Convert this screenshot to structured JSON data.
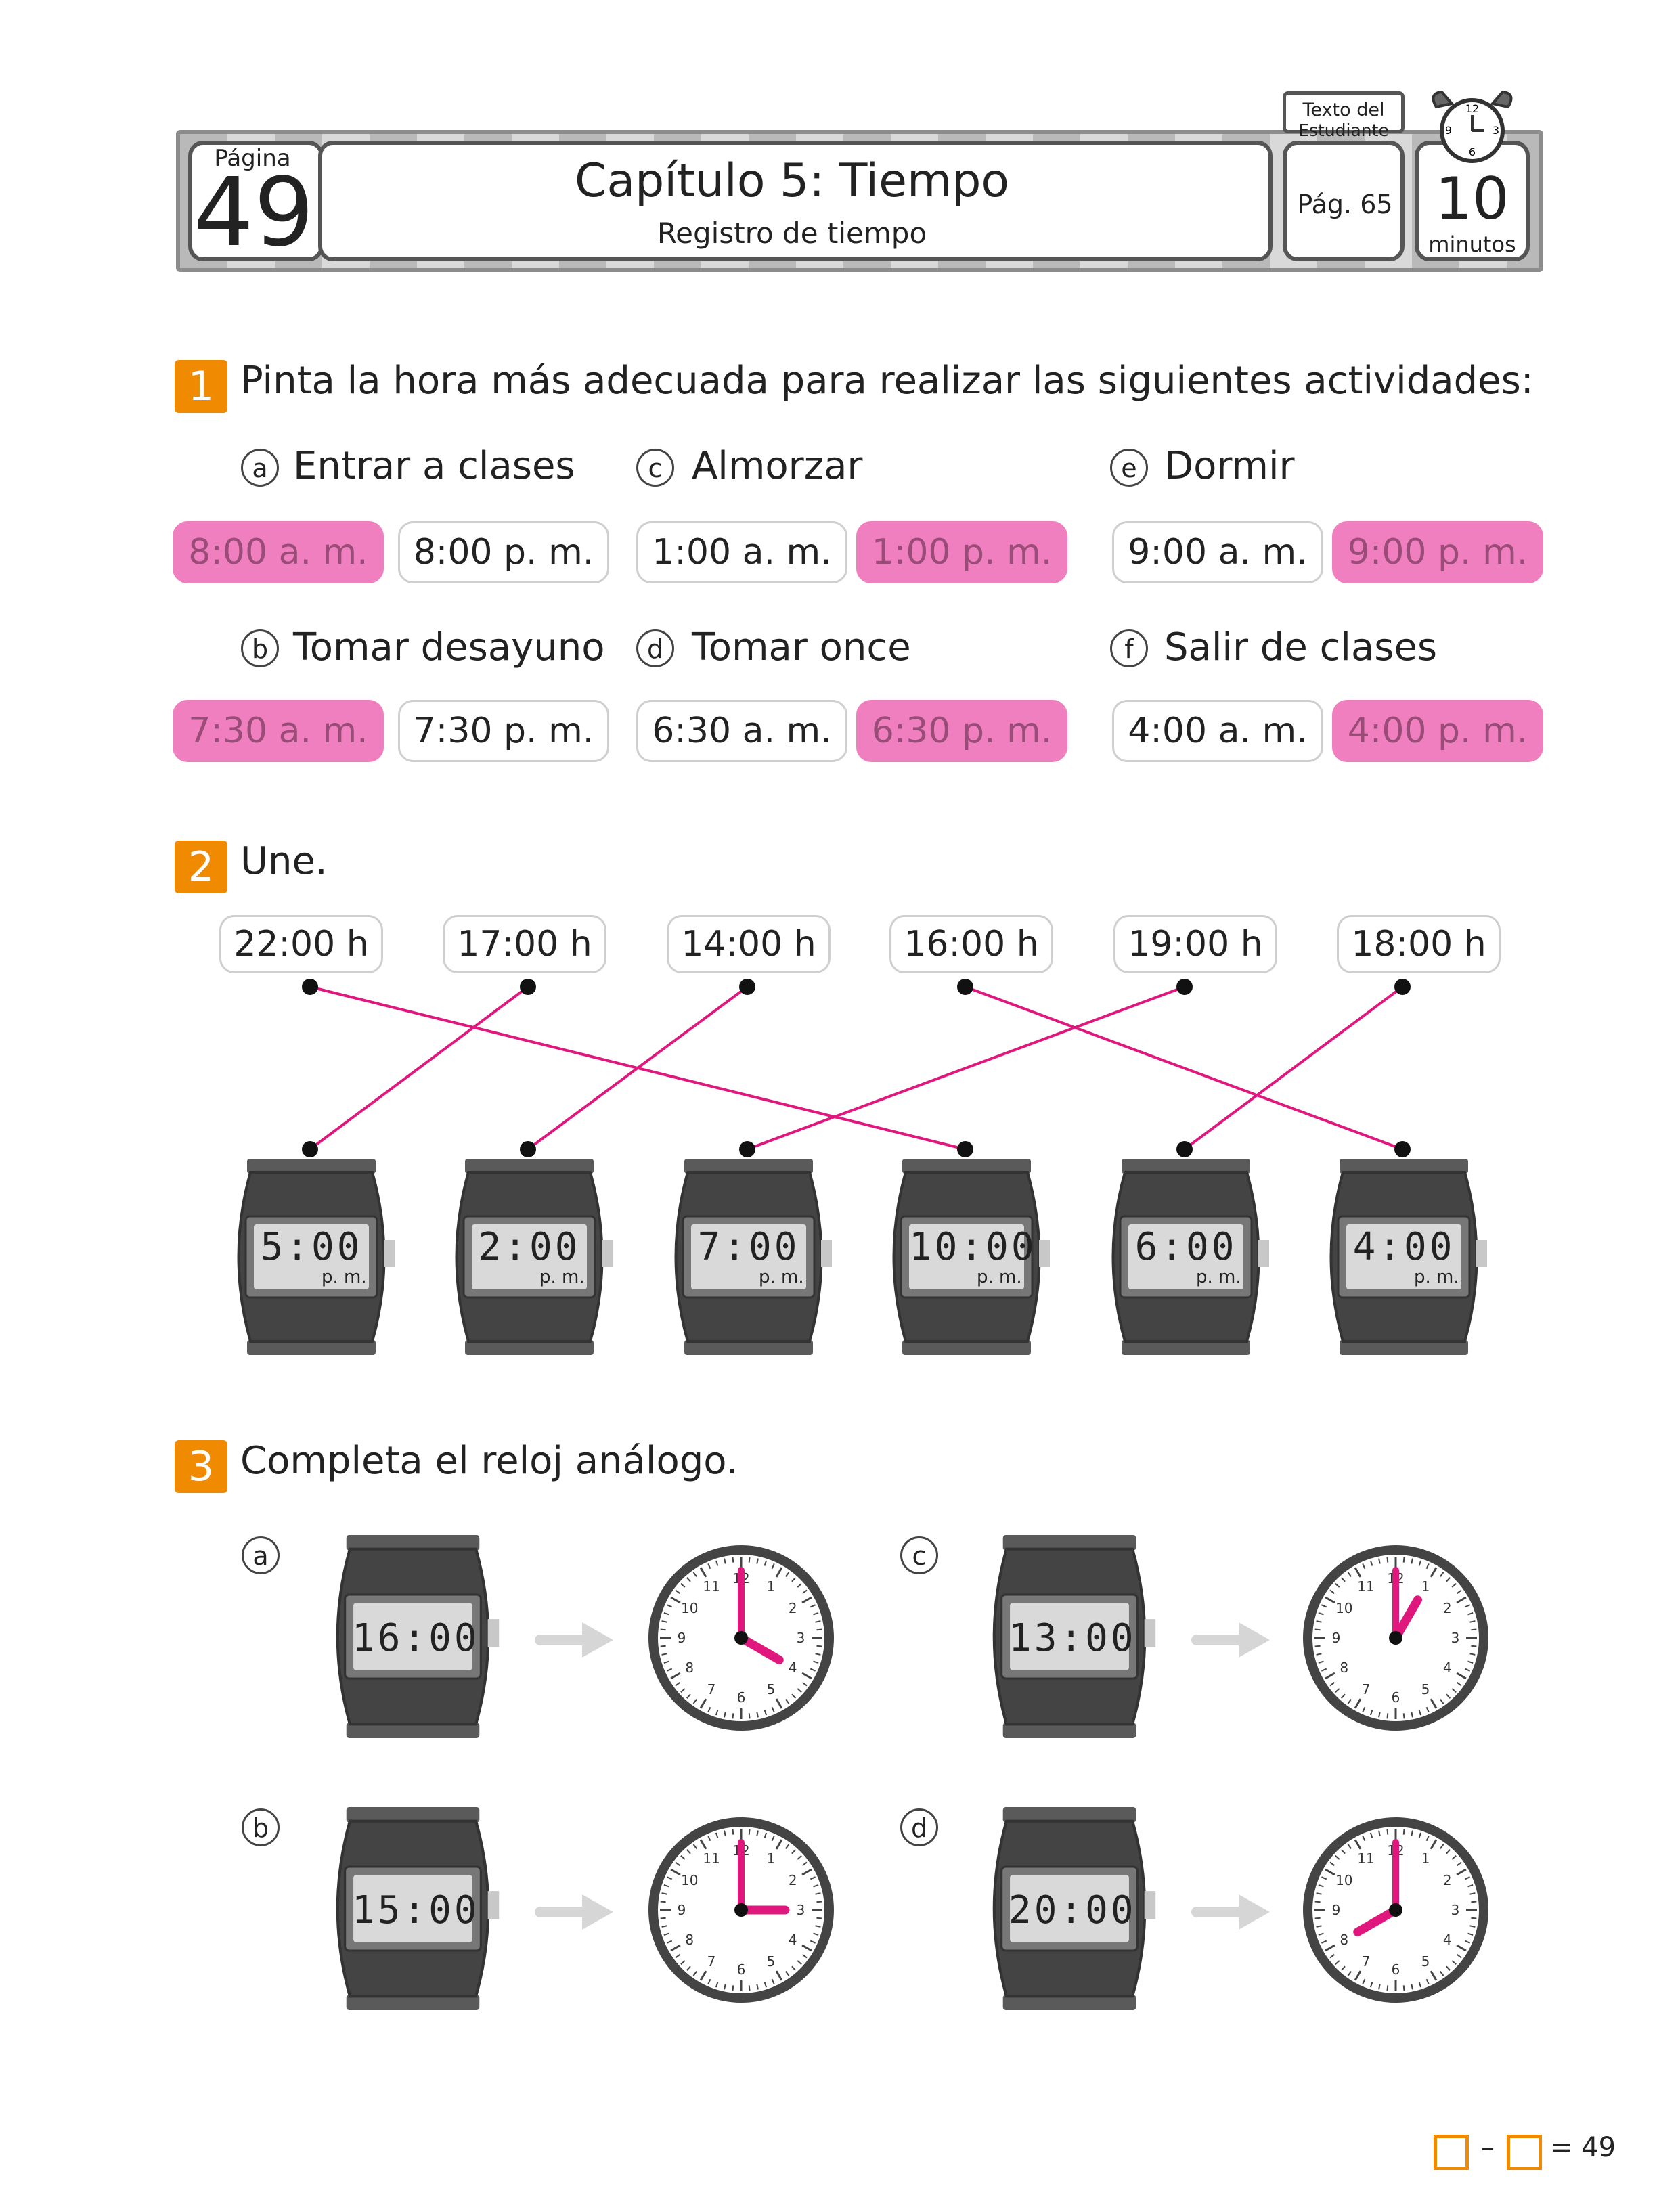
{
  "header": {
    "page_label": "Página",
    "page_number": "49",
    "title": "Capítulo 5: Tiempo",
    "subtitle": "Registro de tiempo",
    "book_label_1": "Texto del",
    "book_label_2": "Estudiante",
    "page_ref": "Pág. 65",
    "minutes_value": "10",
    "minutes_label": "minutos"
  },
  "exercise1": {
    "number": "1",
    "instruction": "Pinta la hora más adecuada para realizar las siguientes actividades:",
    "items": [
      {
        "letter": "a",
        "label": "Entrar a clases",
        "options": [
          "8:00 a. m.",
          "8:00 p. m."
        ],
        "selected": 0
      },
      {
        "letter": "b",
        "label": "Tomar desayuno",
        "options": [
          "7:30 a. m.",
          "7:30 p. m."
        ],
        "selected": 0
      },
      {
        "letter": "c",
        "label": "Almorzar",
        "options": [
          "1:00 a. m.",
          "1:00 p. m."
        ],
        "selected": 1
      },
      {
        "letter": "d",
        "label": "Tomar once",
        "options": [
          "6:30 a. m.",
          "6:30 p. m."
        ],
        "selected": 1
      },
      {
        "letter": "e",
        "label": "Dormir",
        "options": [
          "9:00 a. m.",
          "9:00 p. m."
        ],
        "selected": 1
      },
      {
        "letter": "f",
        "label": "Salir de clases",
        "options": [
          "4:00 a. m.",
          "4:00 p. m."
        ],
        "selected": 1
      }
    ]
  },
  "exercise2": {
    "number": "2",
    "instruction": "Une.",
    "times": [
      "22:00 h",
      "17:00 h",
      "14:00 h",
      "16:00 h",
      "19:00 h",
      "18:00 h"
    ],
    "watches": [
      {
        "time": "5:00",
        "suffix": "p. m."
      },
      {
        "time": "2:00",
        "suffix": "p. m."
      },
      {
        "time": "7:00",
        "suffix": "p. m."
      },
      {
        "time": "10:00",
        "suffix": "p. m."
      },
      {
        "time": "6:00",
        "suffix": "p. m."
      },
      {
        "time": "4:00",
        "suffix": "p. m."
      }
    ],
    "connections": [
      [
        0,
        3
      ],
      [
        1,
        0
      ],
      [
        2,
        1
      ],
      [
        3,
        5
      ],
      [
        4,
        2
      ],
      [
        5,
        4
      ]
    ],
    "line_color": "#e0187e"
  },
  "exercise3": {
    "number": "3",
    "instruction": "Completa el reloj análogo.",
    "items": [
      {
        "letter": "a",
        "digital": "16:00",
        "hour": 4,
        "minute": 0
      },
      {
        "letter": "b",
        "digital": "15:00",
        "hour": 3,
        "minute": 0
      },
      {
        "letter": "c",
        "digital": "13:00",
        "hour": 1,
        "minute": 0
      },
      {
        "letter": "d",
        "digital": "20:00",
        "hour": 8,
        "minute": 0
      }
    ],
    "hand_color": "#e0187e"
  },
  "footer": {
    "minus": "–",
    "equals": "= 49"
  },
  "colors": {
    "accent": "#f08a00",
    "highlight": "#f07fbf",
    "watch_body": "#4a4a4a",
    "lcd": "#d9d9d9"
  }
}
